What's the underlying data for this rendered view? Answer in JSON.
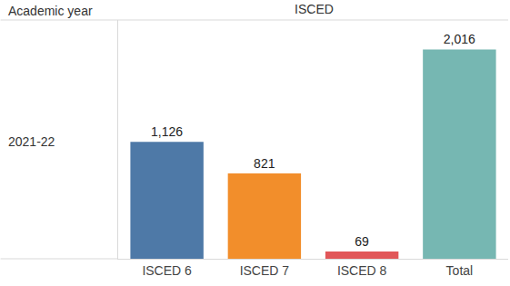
{
  "chart_data": {
    "type": "bar",
    "title": "ISCED",
    "annotations": [
      "Academic year",
      "2021-22"
    ],
    "categories": [
      "ISCED 6",
      "ISCED 7",
      "ISCED 8",
      "Total"
    ],
    "values": [
      1126,
      821,
      69,
      2016
    ],
    "value_labels": [
      "1,126",
      "821",
      "69",
      "2,016"
    ],
    "colors": [
      "#4e79a7",
      "#f28e2b",
      "#e15759",
      "#76b7b2"
    ],
    "ylim": [
      0,
      2300
    ],
    "grid": false,
    "data_labels": true,
    "tick_labels": "x"
  }
}
